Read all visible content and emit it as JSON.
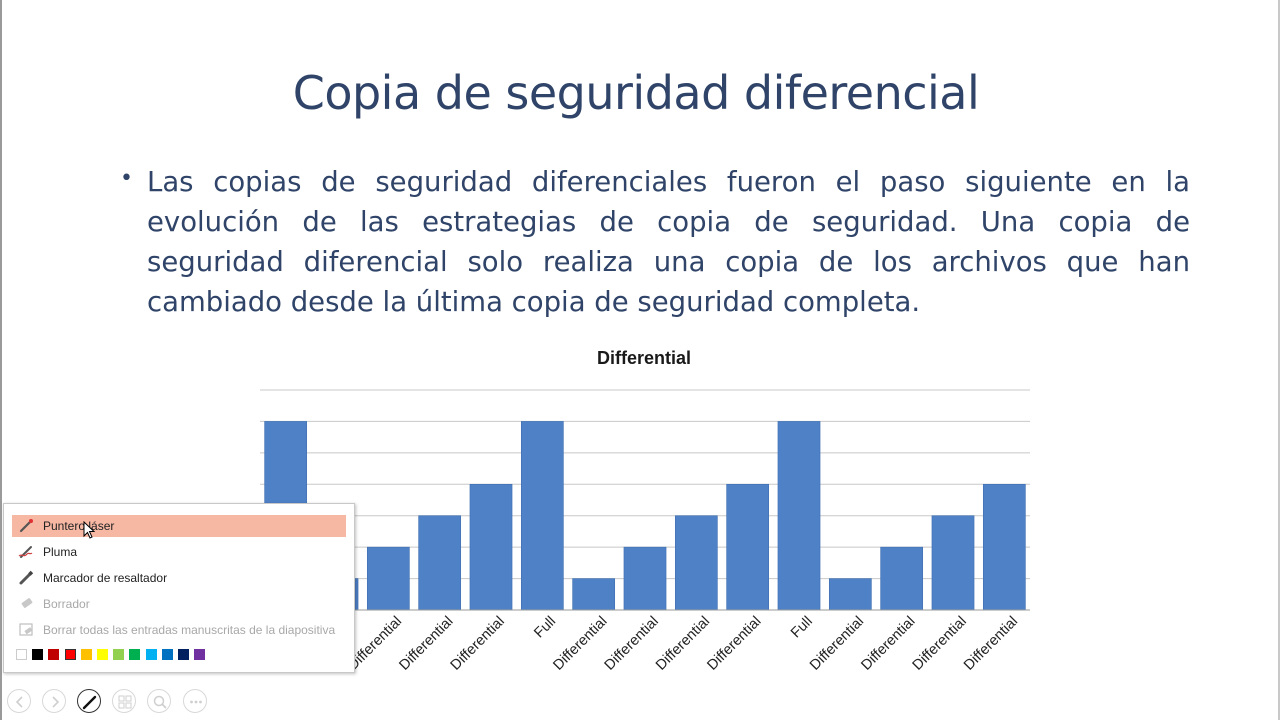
{
  "slide": {
    "title": "Copia de seguridad diferencial",
    "bullet": "Las copias de seguridad diferenciales fueron el paso siguiente en la evolución de las estrategias de copia de seguridad. Una copia de seguridad diferencial solo realiza una copia de los archivos que han cambiado desde la última copia de seguridad completa."
  },
  "chart_data": {
    "type": "bar",
    "title": "Differential",
    "categories": [
      "Full",
      "Differential",
      "Differential",
      "Differential",
      "Differential",
      "Full",
      "Differential",
      "Differential",
      "Differential",
      "Differential",
      "Full",
      "Differential",
      "Differential",
      "Differential",
      "Differential"
    ],
    "values": [
      6,
      1,
      2,
      3,
      4,
      6,
      1,
      2,
      3,
      4,
      6,
      1,
      2,
      3,
      4
    ],
    "ylim": [
      0,
      7
    ],
    "grid": true,
    "bar_color": "#4f81c7"
  },
  "annotation_menu": {
    "items": [
      {
        "label": "Puntero láser",
        "icon": "laser-pointer-icon",
        "state": "active"
      },
      {
        "label": "Pluma",
        "icon": "pen-icon",
        "state": "normal"
      },
      {
        "label": "Marcador de resaltador",
        "icon": "highlighter-icon",
        "state": "normal"
      },
      {
        "label": "Borrador",
        "icon": "eraser-icon",
        "state": "disabled"
      },
      {
        "label": "Borrar todas las entradas manuscritas de la diapositiva",
        "icon": "erase-all-ink-icon",
        "state": "disabled"
      }
    ],
    "colors": [
      "#ffffff",
      "#000000",
      "#c00000",
      "#ff0000",
      "#ffc000",
      "#ffff00",
      "#92d050",
      "#00b050",
      "#00b0f0",
      "#0070c0",
      "#002060",
      "#7030a0"
    ],
    "selected_color": "#ff0000"
  },
  "toolbar": {
    "buttons": [
      "previous-icon",
      "next-icon",
      "pen-icon",
      "see-all-slides-icon",
      "zoom-icon",
      "more-options-icon"
    ]
  }
}
